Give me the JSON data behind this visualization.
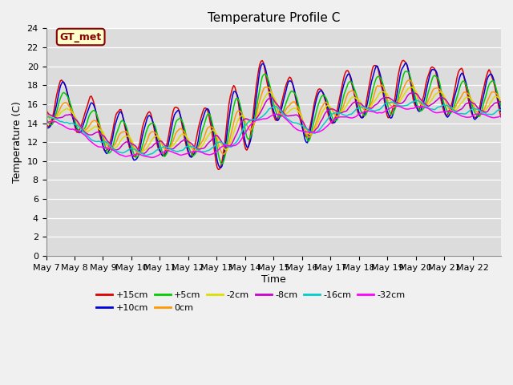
{
  "title": "Temperature Profile C",
  "xlabel": "Time",
  "ylabel": "Temperature (C)",
  "ylim": [
    0,
    24
  ],
  "yticks": [
    0,
    2,
    4,
    6,
    8,
    10,
    12,
    14,
    16,
    18,
    20,
    22,
    24
  ],
  "x_labels": [
    "May 7",
    "May 8",
    "May 9",
    "May 10",
    "May 11",
    "May 12",
    "May 13",
    "May 14",
    "May 15",
    "May 16",
    "May 17",
    "May 18",
    "May 19",
    "May 20",
    "May 21",
    "May 22"
  ],
  "series": [
    {
      "label": "+15cm",
      "color": "#dd0000"
    },
    {
      "label": "+10cm",
      "color": "#0000dd"
    },
    {
      "label": "+5cm",
      "color": "#00cc00"
    },
    {
      "label": "0cm",
      "color": "#ff9900"
    },
    {
      "label": "-2cm",
      "color": "#dddd00"
    },
    {
      "label": "-8cm",
      "color": "#cc00cc"
    },
    {
      "label": "-16cm",
      "color": "#00cccc"
    },
    {
      "label": "-32cm",
      "color": "#ff00ff"
    }
  ],
  "legend_text": "GT_met",
  "ax_bg_color": "#dcdcdc",
  "fig_bg_color": "#f0f0f0",
  "title_fontsize": 11,
  "label_fontsize": 9,
  "tick_fontsize": 8
}
